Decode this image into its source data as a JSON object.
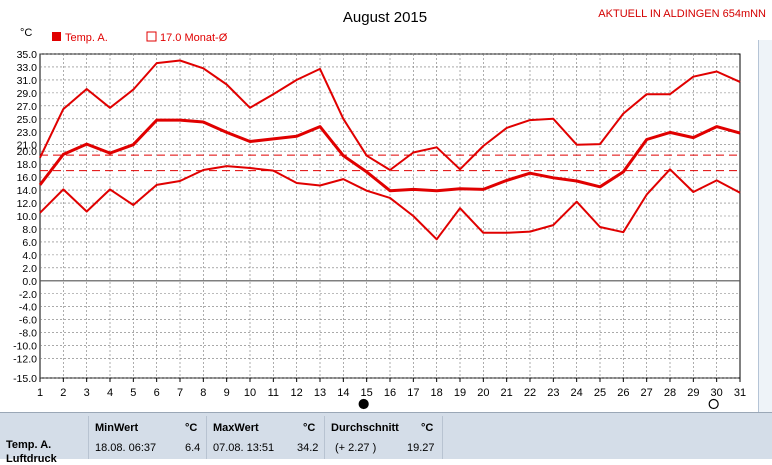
{
  "header": {
    "title": "August 2015",
    "station": "AKTUELL IN ALDINGEN 654mNN"
  },
  "legend": {
    "unit": "°C",
    "series_label": "Temp. A.",
    "avg_label": "17.0 Monat-Ø"
  },
  "colors": {
    "series": "#e00000",
    "grid": "#777777",
    "zero_line": "#555555",
    "stats_bg": "#d4dde8"
  },
  "chart_data": {
    "type": "line",
    "title": "August 2015",
    "ylabel": "°C",
    "ylim": [
      -15,
      35
    ],
    "yticks": [
      "35.0",
      "33.0",
      "31.0",
      "29.0",
      "27.0",
      "25.0",
      "23.0",
      "21.0",
      "20.0",
      "18.0",
      "16.0",
      "14.0",
      "12.0",
      "10.0",
      "8.0",
      "6.0",
      "4.0",
      "2.0",
      "0.0",
      "-2.0",
      "-4.0",
      "-6.0",
      "-8.0",
      "-10.0",
      "-12.0",
      "-15.0"
    ],
    "x": [
      1,
      2,
      3,
      4,
      5,
      6,
      7,
      8,
      9,
      10,
      11,
      12,
      13,
      14,
      15,
      16,
      17,
      18,
      19,
      20,
      21,
      22,
      23,
      24,
      25,
      26,
      27,
      28,
      29,
      30,
      31
    ],
    "series": [
      {
        "name": "max",
        "values": [
          19.0,
          26.5,
          29.6,
          26.7,
          29.5,
          33.6,
          34.0,
          32.8,
          30.3,
          26.7,
          28.8,
          31.0,
          32.7,
          25.0,
          19.3,
          17.1,
          19.8,
          20.6,
          17.2,
          20.8,
          23.6,
          24.8,
          25.0,
          21.0,
          21.1,
          25.8,
          28.8,
          28.8,
          31.5,
          32.3,
          30.7
        ]
      },
      {
        "name": "mean",
        "values": [
          14.8,
          19.5,
          21.1,
          19.7,
          21.0,
          24.8,
          24.8,
          24.5,
          22.9,
          21.5,
          21.9,
          22.3,
          23.8,
          19.3,
          16.8,
          13.9,
          14.1,
          13.9,
          14.2,
          14.1,
          15.5,
          16.6,
          15.9,
          15.4,
          14.5,
          16.8,
          21.8,
          22.9,
          22.1,
          23.8,
          22.8
        ]
      },
      {
        "name": "min",
        "values": [
          10.5,
          14.1,
          10.7,
          14.1,
          11.7,
          14.8,
          15.4,
          17.1,
          17.7,
          17.4,
          17.0,
          15.1,
          14.7,
          15.7,
          13.9,
          12.8,
          10.0,
          6.4,
          11.2,
          7.4,
          7.4,
          7.6,
          8.6,
          12.2,
          8.3,
          7.5,
          13.3,
          17.2,
          13.7,
          15.5,
          13.6
        ]
      }
    ],
    "reference_lines": [
      19.4,
      17.0
    ],
    "x_markers": [
      {
        "x": 15,
        "symbol": "new-moon"
      },
      {
        "x": 30,
        "symbol": "full-moon"
      }
    ],
    "grid": true
  },
  "stats": {
    "row_label": "Temp. A.",
    "min": {
      "header": "MinWert",
      "unit": "°C",
      "time": "18.08.  06:37",
      "value": "6.4"
    },
    "max": {
      "header": "MaxWert",
      "unit": "°C",
      "time": "07.08.  13:51",
      "value": "34.2"
    },
    "avg": {
      "header": "Durchschnitt",
      "unit": "°C",
      "delta": "(+ 2.27 )",
      "value": "19.27"
    },
    "next_row_label": "Luftdruck"
  }
}
